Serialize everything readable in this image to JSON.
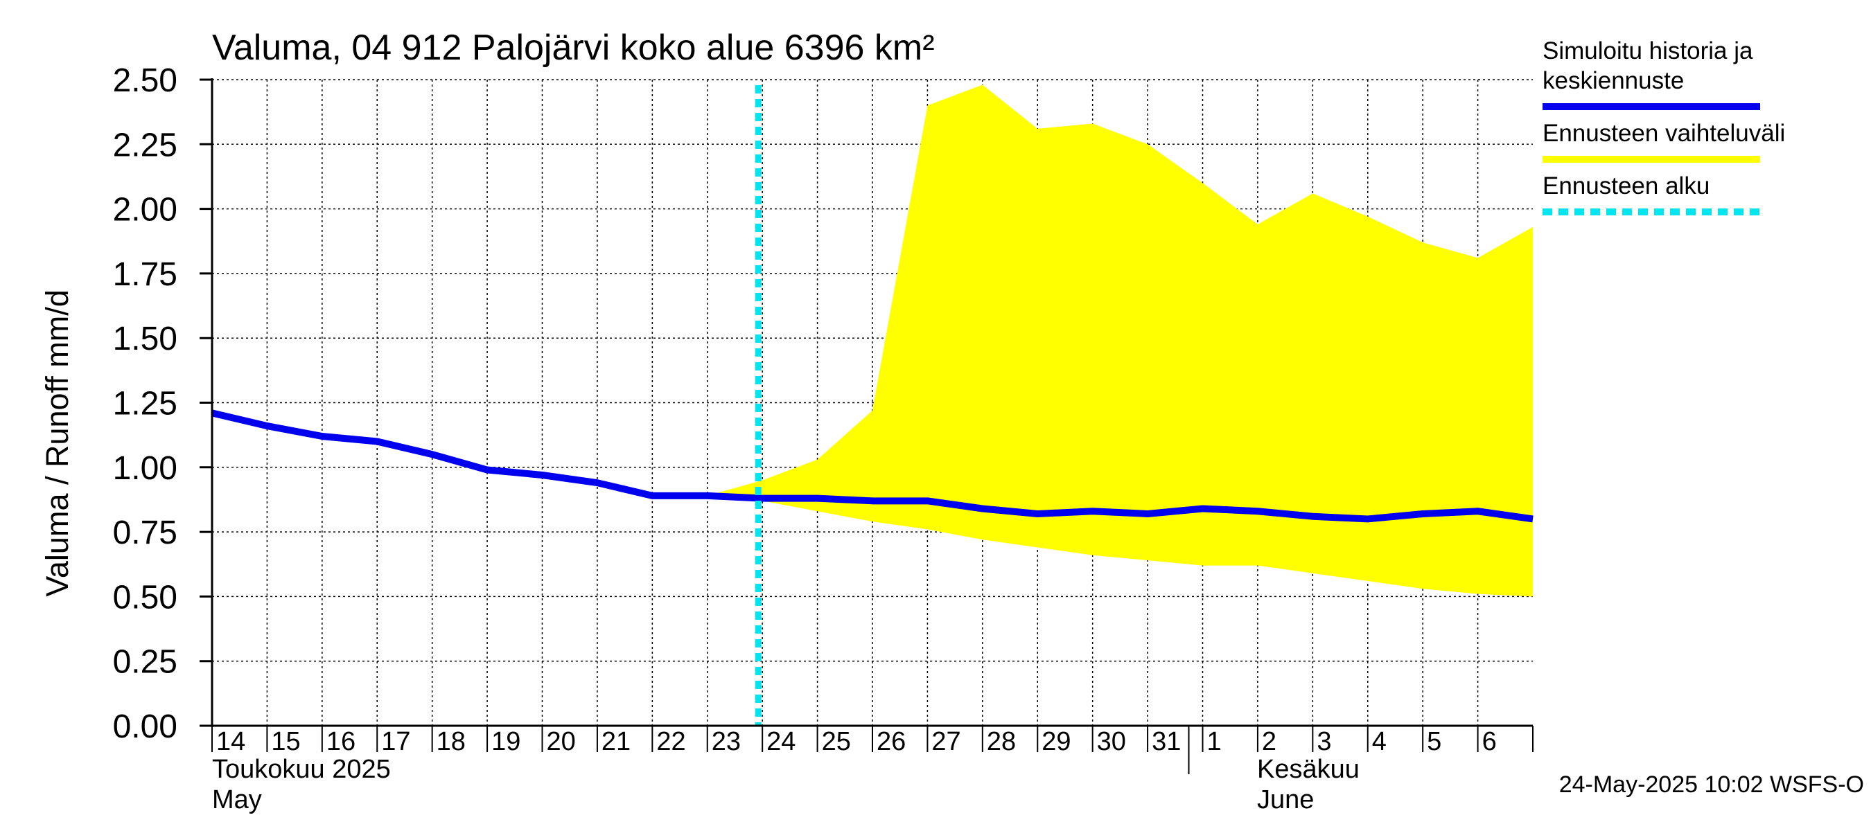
{
  "chart_data": {
    "type": "area",
    "title": "Valuma, 04 912 Palojärvi koko alue 6396 km²",
    "ylabel": "Valuma / Runoff    mm/d",
    "ylim": [
      0,
      2.5
    ],
    "yticks": [
      "0.00",
      "0.25",
      "0.50",
      "0.75",
      "1.00",
      "1.25",
      "1.50",
      "1.75",
      "2.00",
      "2.25",
      "2.50"
    ],
    "days": [
      "14",
      "15",
      "16",
      "17",
      "18",
      "19",
      "20",
      "21",
      "22",
      "23",
      "24",
      "25",
      "26",
      "27",
      "28",
      "29",
      "30",
      "31",
      "1",
      "2",
      "3",
      "4",
      "5",
      "6"
    ],
    "month_labels": {
      "may_fi": "Toukokuu  2025",
      "may_en": "May",
      "june_fi": "Kesäkuu",
      "june_en": "June"
    },
    "x_start_index": 0,
    "x_end_index": 24,
    "forecast_start_index": 10,
    "series": [
      {
        "name": "Simuloitu historia ja keskiennuste",
        "color": "#0000ee",
        "x": [
          0,
          1,
          2,
          3,
          4,
          5,
          6,
          7,
          8,
          9,
          10,
          11,
          12,
          13,
          14,
          15,
          16,
          17,
          18,
          19,
          20,
          21,
          22,
          23,
          24
        ],
        "values": [
          1.21,
          1.16,
          1.12,
          1.1,
          1.05,
          0.99,
          0.97,
          0.94,
          0.89,
          0.89,
          0.88,
          0.88,
          0.87,
          0.87,
          0.84,
          0.82,
          0.83,
          0.82,
          0.84,
          0.83,
          0.81,
          0.8,
          0.82,
          0.83,
          0.8
        ]
      }
    ],
    "band": {
      "name": "Ennusteen vaihteluväli",
      "color": "#ffff00",
      "x": [
        9,
        10,
        11,
        12,
        13,
        14,
        15,
        16,
        17,
        18,
        19,
        20,
        21,
        22,
        23,
        24
      ],
      "upper": [
        0.89,
        0.95,
        1.03,
        1.22,
        2.4,
        2.48,
        2.31,
        2.33,
        2.25,
        2.1,
        1.94,
        2.06,
        1.97,
        1.87,
        1.81,
        1.93
      ],
      "lower": [
        0.89,
        0.87,
        0.83,
        0.79,
        0.76,
        0.72,
        0.69,
        0.66,
        0.64,
        0.62,
        0.62,
        0.59,
        0.56,
        0.53,
        0.51,
        0.5
      ]
    },
    "forecast_line": {
      "name": "Ennusteen alku",
      "color": "#00e5ee"
    },
    "legend": [
      {
        "label_lines": [
          "Simuloitu historia ja",
          "keskiennuste"
        ],
        "color": "#0000ee",
        "style": "solid"
      },
      {
        "label_lines": [
          "Ennusteen vaihteluväli"
        ],
        "color": "#ffff00",
        "style": "solid"
      },
      {
        "label_lines": [
          "Ennusteen alku"
        ],
        "color": "#00e5ee",
        "style": "dashed"
      }
    ],
    "footer": "24-May-2025 10:02 WSFS-O"
  }
}
